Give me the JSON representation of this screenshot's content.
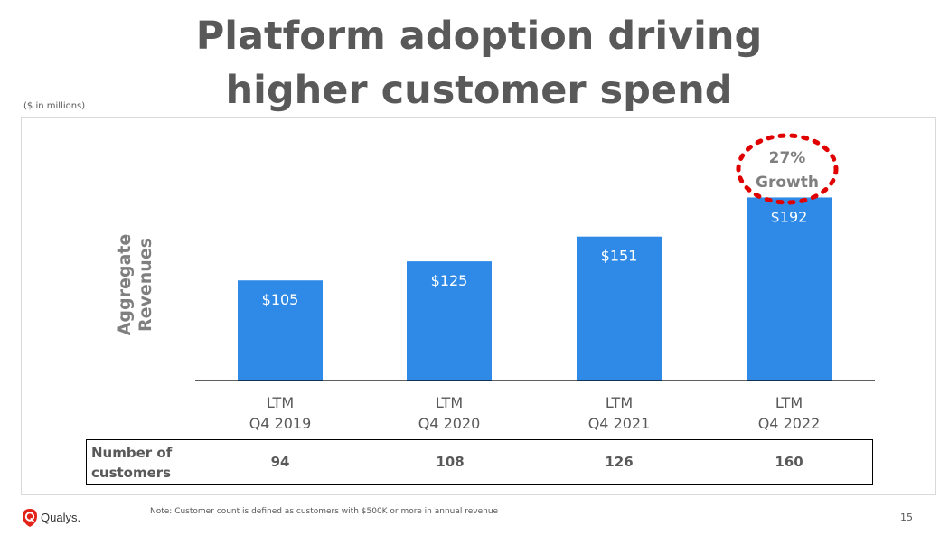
{
  "title_line1": "Platform adoption driving",
  "title_line2": "higher customer spend",
  "units_note": "($ in millions)",
  "chart_data": {
    "type": "bar",
    "ylabel_line1": "Aggregate",
    "ylabel_line2": "Revenues",
    "categories": [
      [
        "LTM",
        "Q4 2019"
      ],
      [
        "LTM",
        "Q4 2020"
      ],
      [
        "LTM",
        "Q4 2021"
      ],
      [
        "LTM",
        "Q4 2022"
      ]
    ],
    "values": [
      105,
      125,
      151,
      192
    ],
    "value_labels": [
      "$105",
      "$125",
      "$151",
      "$192"
    ],
    "ylim": [
      0,
      200
    ],
    "grid": false,
    "bar_color": "#2e8ae6",
    "annotation": {
      "lines": [
        "27%",
        "Growth"
      ],
      "target_category_index": 3,
      "circle_color": "#e00000"
    }
  },
  "customers": {
    "label_line1": "Number of",
    "label_line2": "customers",
    "values": [
      "94",
      "108",
      "126",
      "160"
    ]
  },
  "footer": {
    "brand": "Qualys.",
    "brand_color": "#e2231a",
    "note": "Note: Customer count is defined as customers with $500K or more in annual revenue",
    "page_number": "15"
  }
}
